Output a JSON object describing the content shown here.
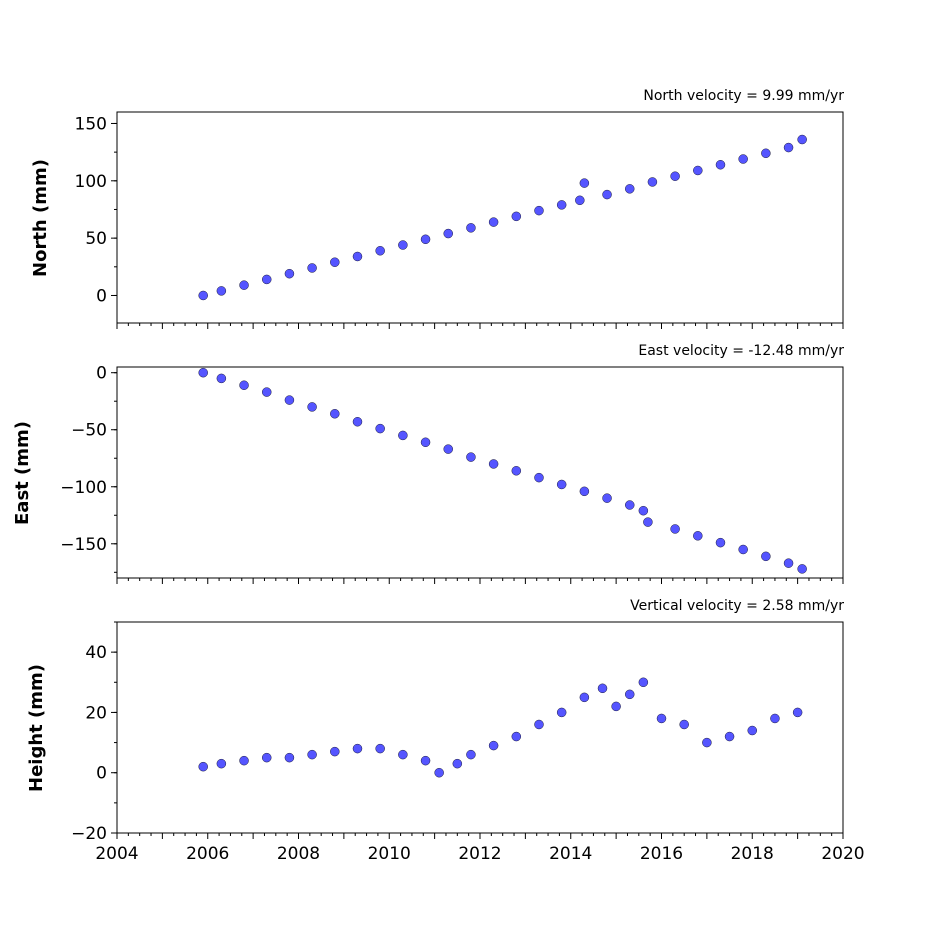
{
  "chart_data": [
    {
      "type": "scatter",
      "title": "North velocity = 9.99 mm/yr",
      "ylabel": "North (mm)",
      "xlim": [
        2004,
        2020
      ],
      "ylim": [
        -24,
        160
      ],
      "yticks": [
        0,
        50,
        100,
        150
      ],
      "ytick_labels": [
        "0",
        "50",
        "100",
        "150"
      ],
      "marker_color": "#5555ff",
      "series": [
        {
          "x": [
            2005.9,
            2006.3,
            2006.8,
            2007.3,
            2007.8,
            2008.3,
            2008.8,
            2009.3,
            2009.8,
            2010.3,
            2010.8,
            2011.3,
            2011.8,
            2012.3,
            2012.8,
            2013.3,
            2013.8,
            2014.2,
            2014.3,
            2014.8,
            2015.3,
            2015.8,
            2016.3,
            2016.8,
            2017.3,
            2017.8,
            2018.3,
            2018.8,
            2019.1
          ],
          "y": [
            0,
            4,
            9,
            14,
            19,
            24,
            29,
            34,
            39,
            44,
            49,
            54,
            59,
            64,
            69,
            74,
            79,
            83,
            98,
            88,
            93,
            99,
            104,
            109,
            114,
            119,
            124,
            129,
            136
          ]
        }
      ]
    },
    {
      "type": "scatter",
      "title": "East velocity = -12.48 mm/yr",
      "ylabel": "East (mm)",
      "xlim": [
        2004,
        2020
      ],
      "ylim": [
        -180,
        5
      ],
      "yticks": [
        0,
        -50,
        -100,
        -150
      ],
      "ytick_labels": [
        "0",
        "−50",
        "−100",
        "−150"
      ],
      "marker_color": "#5555ff",
      "series": [
        {
          "x": [
            2005.9,
            2006.3,
            2006.8,
            2007.3,
            2007.8,
            2008.3,
            2008.8,
            2009.3,
            2009.8,
            2010.3,
            2010.8,
            2011.3,
            2011.8,
            2012.3,
            2012.8,
            2013.3,
            2013.8,
            2014.3,
            2014.8,
            2015.3,
            2015.6,
            2015.7,
            2016.3,
            2016.8,
            2017.3,
            2017.8,
            2018.3,
            2018.8,
            2019.1
          ],
          "y": [
            0,
            -5,
            -11,
            -17,
            -24,
            -30,
            -36,
            -43,
            -49,
            -55,
            -61,
            -67,
            -74,
            -80,
            -86,
            -92,
            -98,
            -104,
            -110,
            -116,
            -121,
            -131,
            -137,
            -143,
            -149,
            -155,
            -161,
            -167,
            -172
          ]
        }
      ]
    },
    {
      "type": "scatter",
      "title": "Vertical velocity = 2.58 mm/yr",
      "ylabel": "Height (mm)",
      "xlim": [
        2004,
        2020
      ],
      "ylim": [
        -20,
        50
      ],
      "yticks": [
        -20,
        0,
        20,
        40
      ],
      "ytick_labels": [
        "−20",
        "0",
        "20",
        "40"
      ],
      "xticks": [
        2004,
        2006,
        2008,
        2010,
        2012,
        2014,
        2016,
        2018,
        2020
      ],
      "xtick_labels": [
        "2004",
        "2006",
        "2008",
        "2010",
        "2012",
        "2014",
        "2016",
        "2018",
        "2020"
      ],
      "marker_color": "#5555ff",
      "series": [
        {
          "x": [
            2005.9,
            2006.3,
            2006.8,
            2007.3,
            2007.8,
            2008.3,
            2008.8,
            2009.3,
            2009.8,
            2010.3,
            2010.8,
            2011.1,
            2011.5,
            2011.8,
            2012.3,
            2012.8,
            2013.3,
            2013.8,
            2014.3,
            2014.7,
            2015.0,
            2015.3,
            2015.6,
            2016.0,
            2016.5,
            2017.0,
            2017.5,
            2018.0,
            2018.5,
            2019.0
          ],
          "y": [
            2,
            3,
            4,
            5,
            5,
            6,
            7,
            8,
            8,
            6,
            4,
            0,
            3,
            6,
            9,
            12,
            16,
            20,
            25,
            28,
            22,
            26,
            30,
            18,
            16,
            10,
            12,
            14,
            18,
            20
          ]
        }
      ]
    }
  ]
}
